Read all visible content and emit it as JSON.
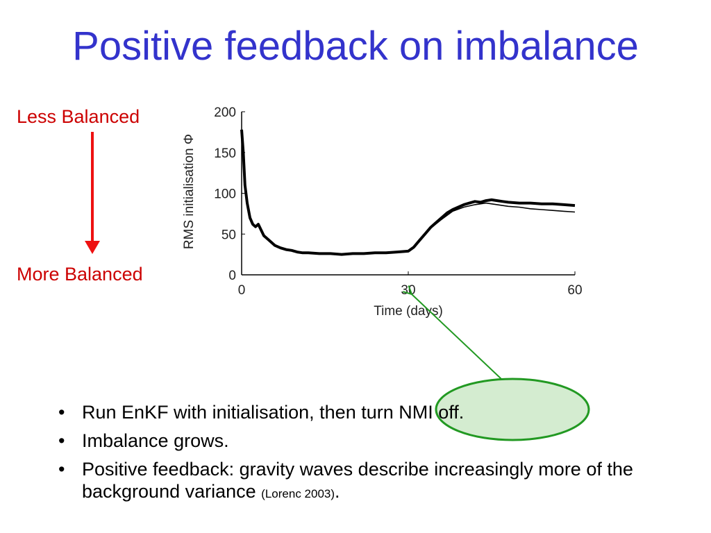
{
  "title": "Positive feedback on imbalance",
  "scale": {
    "top_label": "Less Balanced",
    "bottom_label": "More Balanced",
    "arrow_color": "#ee1111"
  },
  "bullets": {
    "b1_text": "Run EnKF with initialisation, then ",
    "b1_highlight": "turn NMI off.",
    "b2_text": "Imbalance grows.",
    "b3_text": "Positive feedback: gravity waves describe increasingly more of the background variance ",
    "b3_cite": "(Lorenc 2003)",
    "b3_end": "."
  },
  "colors": {
    "title": "#3333cc",
    "label": "#cc0000",
    "callout_fill": "#d4ecd0",
    "callout_stroke": "#229922"
  },
  "chart_data": {
    "type": "line",
    "xlabel": "Time (days)",
    "ylabel": "RMS initialisation Φ",
    "xlim": [
      0,
      60
    ],
    "ylim": [
      0,
      200
    ],
    "x_ticks": [
      0,
      30,
      60
    ],
    "y_ticks": [
      0,
      50,
      100,
      150,
      200
    ],
    "x_tick_labels": [
      "0",
      "30",
      "60"
    ],
    "y_tick_labels": [
      "0",
      "50",
      "100",
      "150",
      "200"
    ],
    "grid": false,
    "series": [
      {
        "x": [
          0,
          0.3,
          0.6,
          1,
          1.5,
          2,
          2.5,
          3,
          3.5,
          4,
          5,
          6,
          7,
          8,
          9,
          10,
          11,
          12,
          14,
          16,
          18,
          20,
          22,
          24,
          26,
          28,
          30,
          31,
          32,
          33,
          34,
          35,
          36,
          37,
          38,
          39,
          40,
          41,
          42,
          43,
          44,
          45,
          46,
          47,
          48,
          50,
          52,
          54,
          56,
          58,
          60
        ],
        "y": [
          178,
          150,
          110,
          88,
          70,
          62,
          59,
          62,
          55,
          48,
          42,
          36,
          33,
          31,
          30,
          28,
          27,
          27,
          26,
          26,
          25,
          26,
          26,
          27,
          27,
          28,
          29,
          34,
          42,
          50,
          58,
          64,
          70,
          76,
          80,
          83,
          86,
          88,
          90,
          89,
          91,
          92,
          91,
          90,
          89,
          88,
          88,
          87,
          87,
          86,
          85
        ]
      },
      {
        "x": [
          30,
          32,
          34,
          36,
          38,
          40,
          42,
          44,
          46,
          48,
          50,
          52,
          54,
          56,
          58,
          60
        ],
        "y": [
          29,
          41,
          57,
          68,
          78,
          83,
          86,
          88,
          86,
          84,
          83,
          81,
          80,
          79,
          78,
          77
        ]
      }
    ]
  }
}
